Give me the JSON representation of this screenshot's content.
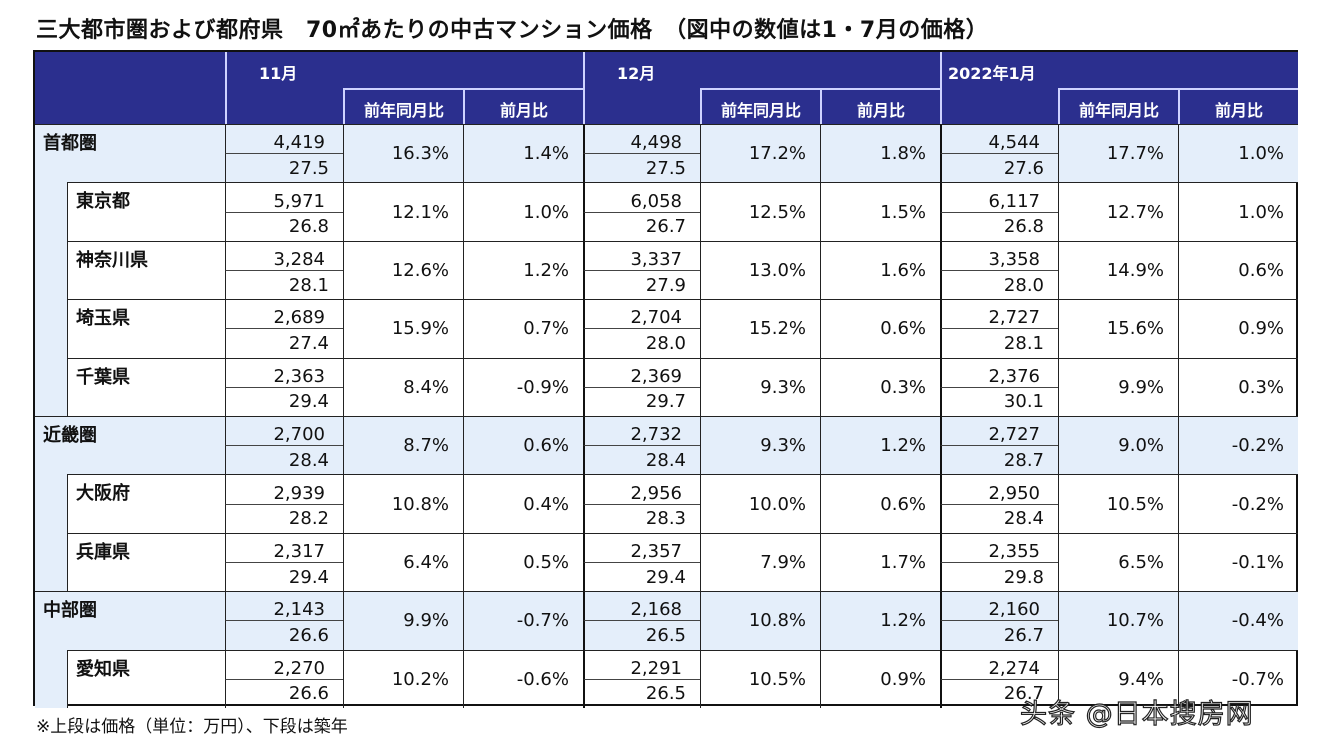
{
  "title": "三大都市圏および都府県　70㎡あたりの中古マンション価格　（図中の数値は1・7月の価格）",
  "months": [
    "11月",
    "12月",
    "2022年1月"
  ],
  "sub_headers": [
    "前年同月比",
    "前月比"
  ],
  "rows": [
    {
      "name": "首都圏",
      "level": "region",
      "data": [
        [
          "4,419",
          "27.5",
          "16.3%",
          "1.4%"
        ],
        [
          "4,498",
          "27.5",
          "17.2%",
          "1.8%"
        ],
        [
          "4,544",
          "27.6",
          "17.7%",
          "1.0%"
        ]
      ]
    },
    {
      "name": "東京都",
      "level": "pref",
      "data": [
        [
          "5,971",
          "26.8",
          "12.1%",
          "1.0%"
        ],
        [
          "6,058",
          "26.7",
          "12.5%",
          "1.5%"
        ],
        [
          "6,117",
          "26.8",
          "12.7%",
          "1.0%"
        ]
      ]
    },
    {
      "name": "神奈川県",
      "level": "pref",
      "data": [
        [
          "3,284",
          "28.1",
          "12.6%",
          "1.2%"
        ],
        [
          "3,337",
          "27.9",
          "13.0%",
          "1.6%"
        ],
        [
          "3,358",
          "28.0",
          "14.9%",
          "0.6%"
        ]
      ]
    },
    {
      "name": "埼玉県",
      "level": "pref",
      "data": [
        [
          "2,689",
          "27.4",
          "15.9%",
          "0.7%"
        ],
        [
          "2,704",
          "28.0",
          "15.2%",
          "0.6%"
        ],
        [
          "2,727",
          "28.1",
          "15.6%",
          "0.9%"
        ]
      ]
    },
    {
      "name": "千葉県",
      "level": "pref",
      "data": [
        [
          "2,363",
          "29.4",
          "8.4%",
          "-0.9%"
        ],
        [
          "2,369",
          "29.7",
          "9.3%",
          "0.3%"
        ],
        [
          "2,376",
          "30.1",
          "9.9%",
          "0.3%"
        ]
      ]
    },
    {
      "name": "近畿圏",
      "level": "region",
      "data": [
        [
          "2,700",
          "28.4",
          "8.7%",
          "0.6%"
        ],
        [
          "2,732",
          "28.4",
          "9.3%",
          "1.2%"
        ],
        [
          "2,727",
          "28.7",
          "9.0%",
          "-0.2%"
        ]
      ]
    },
    {
      "name": "大阪府",
      "level": "pref",
      "data": [
        [
          "2,939",
          "28.2",
          "10.8%",
          "0.4%"
        ],
        [
          "2,956",
          "28.3",
          "10.0%",
          "0.6%"
        ],
        [
          "2,950",
          "28.4",
          "10.5%",
          "-0.2%"
        ]
      ]
    },
    {
      "name": "兵庫県",
      "level": "pref",
      "data": [
        [
          "2,317",
          "29.4",
          "6.4%",
          "0.5%"
        ],
        [
          "2,357",
          "29.4",
          "7.9%",
          "1.7%"
        ],
        [
          "2,355",
          "29.8",
          "6.5%",
          "-0.1%"
        ]
      ]
    },
    {
      "name": "中部圏",
      "level": "region",
      "data": [
        [
          "2,143",
          "26.6",
          "9.9%",
          "-0.7%"
        ],
        [
          "2,168",
          "26.5",
          "10.8%",
          "1.2%"
        ],
        [
          "2,160",
          "26.7",
          "10.7%",
          "-0.4%"
        ]
      ]
    },
    {
      "name": "愛知県",
      "level": "pref",
      "data": [
        [
          "2,270",
          "26.6",
          "10.2%",
          "-0.6%"
        ],
        [
          "2,291",
          "26.5",
          "10.5%",
          "0.9%"
        ],
        [
          "2,274",
          "26.7",
          "9.4%",
          "-0.7%"
        ]
      ]
    }
  ],
  "footnote": "※上段は価格（単位：万円）、下段は築年",
  "watermark": "头条 @日本搜房网",
  "colors": {
    "header_bg": "#2b2f8e",
    "region_bg": "#e4eefa"
  }
}
